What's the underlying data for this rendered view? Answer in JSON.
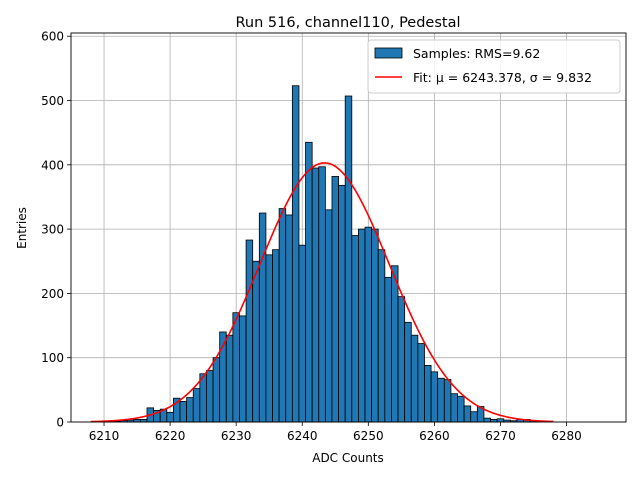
{
  "chart_data": {
    "type": "bar",
    "title": "Run 516, channel110, Pedestal",
    "xlabel": "ADC Counts",
    "ylabel": "Entries",
    "xlim": [
      6205,
      6289
    ],
    "ylim": [
      0,
      605
    ],
    "xticks": [
      6210,
      6220,
      6230,
      6240,
      6250,
      6260,
      6270,
      6280
    ],
    "yticks": [
      0,
      100,
      200,
      300,
      400,
      500,
      600
    ],
    "grid": true,
    "legend_position": "top-right",
    "colors": {
      "bars": "#1f77b4",
      "bar_edge": "#000000",
      "fit": "#ff0000",
      "grid": "#b0b0b0"
    },
    "histogram": {
      "name": "Samples: RMS=9.62",
      "bin_width": 1,
      "x": [
        6211,
        6212,
        6213,
        6214,
        6215,
        6216,
        6217,
        6218,
        6219,
        6220,
        6221,
        6222,
        6223,
        6224,
        6225,
        6226,
        6227,
        6228,
        6229,
        6230,
        6231,
        6232,
        6233,
        6234,
        6235,
        6236,
        6237,
        6238,
        6239,
        6240,
        6241,
        6242,
        6243,
        6244,
        6245,
        6246,
        6247,
        6248,
        6249,
        6250,
        6251,
        6252,
        6253,
        6254,
        6255,
        6256,
        6257,
        6258,
        6259,
        6260,
        6261,
        6262,
        6263,
        6264,
        6265,
        6266,
        6267,
        6268,
        6269,
        6270,
        6271,
        6272,
        6273,
        6274,
        6275
      ],
      "values": [
        1,
        1,
        2,
        3,
        4,
        4,
        22,
        18,
        20,
        15,
        37,
        32,
        38,
        52,
        75,
        80,
        100,
        140,
        135,
        170,
        165,
        283,
        250,
        325,
        260,
        268,
        332,
        322,
        523,
        275,
        435,
        395,
        397,
        330,
        382,
        368,
        507,
        290,
        300,
        303,
        300,
        268,
        225,
        243,
        195,
        155,
        135,
        122,
        88,
        78,
        68,
        66,
        44,
        40,
        25,
        16,
        24,
        6,
        4,
        5,
        3,
        2,
        4,
        4,
        2
      ]
    },
    "fit": {
      "name": "Fit: μ = 6243.378, σ = 9.832",
      "mu": 6243.378,
      "sigma": 9.832,
      "amplitude": 403,
      "x_range": [
        6208,
        6278
      ]
    }
  }
}
